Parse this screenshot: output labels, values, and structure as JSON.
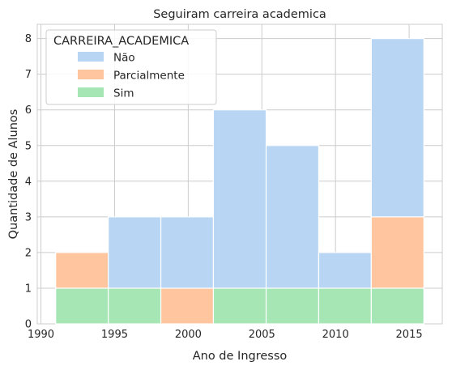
{
  "chart_data": {
    "type": "bar",
    "subtype": "stacked-histogram",
    "title": "Seguiram carreira academica",
    "xlabel": "Ano de Ingresso",
    "ylabel": "Quantidade de Alunos",
    "xlim": [
      1989.75,
      2017.25
    ],
    "ylim": [
      0,
      8.4
    ],
    "xticks": [
      1990,
      1995,
      2000,
      2005,
      2010,
      2015
    ],
    "yticks": [
      0,
      1,
      2,
      3,
      4,
      5,
      6,
      7,
      8
    ],
    "grid": true,
    "legend": {
      "title": "CARREIRA_ACADEMICA",
      "placement": "top-left"
    },
    "bins": [
      [
        1991.0,
        1994.57
      ],
      [
        1994.57,
        1998.14
      ],
      [
        1998.14,
        2001.71
      ],
      [
        2001.71,
        2005.29
      ],
      [
        2005.29,
        2008.86
      ],
      [
        2008.86,
        2012.43
      ],
      [
        2012.43,
        2016.0
      ]
    ],
    "series": [
      {
        "name": "Sim",
        "color": "#a6e6b5",
        "values": [
          1,
          1,
          0,
          1,
          1,
          1,
          1
        ]
      },
      {
        "name": "Parcialmente",
        "color": "#ffc59e",
        "values": [
          1,
          0,
          1,
          0,
          0,
          0,
          2
        ]
      },
      {
        "name": "Não",
        "color": "#b8d6f3",
        "values": [
          0,
          2,
          2,
          5,
          4,
          1,
          5
        ]
      }
    ],
    "legend_order": [
      "Não",
      "Parcialmente",
      "Sim"
    ]
  }
}
